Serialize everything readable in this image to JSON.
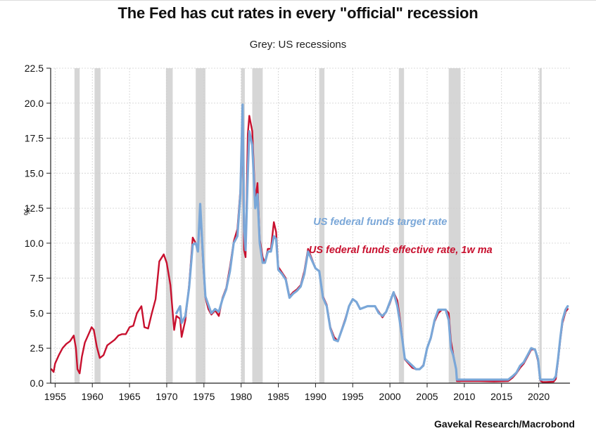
{
  "title": "The Fed has cut rates in every \"official\" recession",
  "subtitle": "Grey: US recessions",
  "source": "Gavekal Research/Macrobond",
  "colors": {
    "target": "#7aa7d8",
    "effective": "#c8102e",
    "recession": "#d6d6d6",
    "grid": "#cfcfcf"
  },
  "chart_data": {
    "type": "line",
    "ylabel": "%",
    "xlim": [
      1954.4,
      2024.2
    ],
    "ylim": [
      0,
      22.5
    ],
    "x_ticks": [
      1955,
      1960,
      1965,
      1970,
      1975,
      1980,
      1985,
      1990,
      1995,
      2000,
      2005,
      2010,
      2015,
      2020
    ],
    "y_ticks": [
      {
        "value": 0,
        "label": "0.0"
      },
      {
        "value": 2.5,
        "label": "2.5"
      },
      {
        "value": 5,
        "label": "5.0"
      },
      {
        "value": 7.5,
        "label": "7.5"
      },
      {
        "value": 10,
        "label": "10.0"
      },
      {
        "value": 12.5,
        "label": "12.5"
      },
      {
        "value": 15,
        "label": "15.0"
      },
      {
        "value": 17.5,
        "label": "17.5"
      },
      {
        "value": 20,
        "label": "20.0"
      },
      {
        "value": 22.5,
        "label": "22.5"
      }
    ],
    "recessions": [
      [
        1957.6,
        1958.3
      ],
      [
        1960.3,
        1961.1
      ],
      [
        1969.9,
        1970.8
      ],
      [
        1973.9,
        1975.2
      ],
      [
        1980.0,
        1980.5
      ],
      [
        1981.5,
        1982.9
      ],
      [
        1990.5,
        1991.2
      ],
      [
        2001.2,
        2001.9
      ],
      [
        2007.9,
        2009.5
      ],
      [
        2020.1,
        2020.4
      ]
    ],
    "series": [
      {
        "name": "US federal funds effective rate, 1w ma",
        "x": [
          1954.5,
          1954.8,
          1955.0,
          1955.5,
          1956.0,
          1956.5,
          1957.0,
          1957.5,
          1957.8,
          1958.0,
          1958.3,
          1958.6,
          1959.0,
          1959.5,
          1959.9,
          1960.2,
          1960.6,
          1961.0,
          1961.5,
          1962.0,
          1962.5,
          1963.0,
          1963.5,
          1964.0,
          1964.5,
          1965.0,
          1965.5,
          1966.0,
          1966.6,
          1967.0,
          1967.5,
          1968.0,
          1968.5,
          1969.0,
          1969.6,
          1970.0,
          1970.5,
          1971.0,
          1971.3,
          1971.8,
          1972.0,
          1972.5,
          1973.0,
          1973.5,
          1973.9,
          1974.2,
          1974.5,
          1974.9,
          1975.2,
          1975.6,
          1976.0,
          1976.5,
          1977.0,
          1977.5,
          1978.0,
          1978.5,
          1979.0,
          1979.5,
          1979.9,
          1980.2,
          1980.4,
          1980.6,
          1980.9,
          1981.1,
          1981.5,
          1981.9,
          1982.2,
          1982.5,
          1982.9,
          1983.2,
          1983.6,
          1984.0,
          1984.4,
          1984.7,
          1985.0,
          1985.5,
          1986.0,
          1986.5,
          1987.0,
          1987.5,
          1988.0,
          1988.5,
          1989.0,
          1989.5,
          1990.0,
          1990.5,
          1991.0,
          1991.5,
          1992.0,
          1992.5,
          1993.0,
          1994.0,
          1994.5,
          1995.0,
          1995.5,
          1996.0,
          1997.0,
          1998.0,
          1998.5,
          1999.0,
          1999.5,
          2000.0,
          2000.5,
          2001.0,
          2001.3,
          2001.7,
          2002.0,
          2003.0,
          2003.5,
          2004.0,
          2004.5,
          2005.0,
          2005.5,
          2006.0,
          2006.5,
          2007.0,
          2007.5,
          2007.9,
          2008.2,
          2008.5,
          2008.9,
          2009.0,
          2010.0,
          2012.0,
          2014.0,
          2015.9,
          2016.5,
          2017.0,
          2017.5,
          2018.0,
          2018.5,
          2019.0,
          2019.5,
          2019.9,
          2020.2,
          2020.5,
          2021.0,
          2022.0,
          2022.3,
          2022.6,
          2022.9,
          2023.2,
          2023.6,
          2023.9
        ],
        "y": [
          1.0,
          0.8,
          1.4,
          2.0,
          2.5,
          2.8,
          3.0,
          3.4,
          2.5,
          1.0,
          0.7,
          1.9,
          2.9,
          3.5,
          4.0,
          3.8,
          2.6,
          1.8,
          2.0,
          2.7,
          2.9,
          3.1,
          3.4,
          3.5,
          3.5,
          4.0,
          4.1,
          5.0,
          5.5,
          4.0,
          3.9,
          5.0,
          6.0,
          8.7,
          9.2,
          8.6,
          7.0,
          3.8,
          4.8,
          4.6,
          3.3,
          4.5,
          7.0,
          10.4,
          10.0,
          9.6,
          12.5,
          8.5,
          6.1,
          5.3,
          4.9,
          5.2,
          4.8,
          6.1,
          6.8,
          8.3,
          10.1,
          11.0,
          13.8,
          17.6,
          9.5,
          9.0,
          17.8,
          19.1,
          18.0,
          13.0,
          14.3,
          10.3,
          9.0,
          8.6,
          9.6,
          9.6,
          11.5,
          10.8,
          8.3,
          7.9,
          7.5,
          6.2,
          6.5,
          6.7,
          7.0,
          8.0,
          9.6,
          8.9,
          8.2,
          8.0,
          6.2,
          5.6,
          4.0,
          3.3,
          3.0,
          4.6,
          5.5,
          6.0,
          5.8,
          5.3,
          5.5,
          5.5,
          5.1,
          4.7,
          5.1,
          5.7,
          6.5,
          5.9,
          4.8,
          3.1,
          1.7,
          1.1,
          1.0,
          1.0,
          1.3,
          2.5,
          3.2,
          4.4,
          5.0,
          5.25,
          5.25,
          5.0,
          3.0,
          2.1,
          1.0,
          0.15,
          0.15,
          0.15,
          0.12,
          0.15,
          0.4,
          0.7,
          1.1,
          1.4,
          1.9,
          2.4,
          2.4,
          1.6,
          0.2,
          0.08,
          0.08,
          0.1,
          0.3,
          1.6,
          3.1,
          4.3,
          5.1,
          5.3
        ]
      },
      {
        "name": "US federal funds target rate",
        "x": [
          1971.3,
          1971.8,
          1972.0,
          1972.5,
          1973.0,
          1973.5,
          1973.9,
          1974.2,
          1974.5,
          1974.9,
          1975.2,
          1975.6,
          1976.0,
          1976.5,
          1977.0,
          1977.5,
          1978.0,
          1978.5,
          1979.0,
          1979.5,
          1979.9,
          1980.2,
          1980.4,
          1980.6,
          1980.9,
          1981.1,
          1981.5,
          1981.9,
          1982.2,
          1982.5,
          1982.9,
          1983.2,
          1983.6,
          1984.0,
          1984.4,
          1984.7,
          1985.0,
          1985.5,
          1986.0,
          1986.5,
          1987.0,
          1987.5,
          1988.0,
          1988.5,
          1989.0,
          1989.5,
          1990.0,
          1990.5,
          1991.0,
          1991.5,
          1992.0,
          1992.5,
          1993.0,
          1994.0,
          1994.5,
          1995.0,
          1995.5,
          1996.0,
          1997.0,
          1998.0,
          1998.5,
          1999.0,
          1999.5,
          2000.0,
          2000.5,
          2001.0,
          2001.3,
          2001.7,
          2002.0,
          2003.0,
          2003.5,
          2004.0,
          2004.5,
          2005.0,
          2005.5,
          2006.0,
          2006.5,
          2007.0,
          2007.5,
          2007.9,
          2008.2,
          2008.5,
          2008.9,
          2009.0,
          2010.0,
          2012.0,
          2014.0,
          2015.9,
          2016.5,
          2017.0,
          2017.5,
          2018.0,
          2018.5,
          2019.0,
          2019.5,
          2019.9,
          2020.2,
          2020.5,
          2021.0,
          2022.0,
          2022.3,
          2022.6,
          2022.9,
          2023.2,
          2023.6,
          2023.9
        ],
        "y": [
          5.0,
          5.5,
          4.3,
          4.8,
          6.8,
          9.9,
          10.0,
          9.4,
          12.8,
          8.8,
          6.2,
          5.6,
          5.0,
          5.3,
          5.1,
          6.0,
          6.7,
          8.0,
          10.0,
          10.5,
          13.5,
          19.9,
          11.0,
          9.5,
          15.0,
          18.0,
          17.0,
          12.5,
          13.5,
          10.0,
          8.6,
          8.6,
          9.4,
          9.4,
          10.5,
          10.3,
          8.1,
          7.8,
          7.4,
          6.1,
          6.4,
          6.6,
          6.9,
          7.8,
          9.4,
          8.8,
          8.2,
          8.0,
          6.1,
          5.5,
          3.9,
          3.1,
          3.0,
          4.5,
          5.5,
          6.0,
          5.8,
          5.3,
          5.5,
          5.5,
          5.0,
          4.8,
          5.1,
          5.8,
          6.5,
          5.5,
          4.5,
          3.0,
          1.75,
          1.25,
          1.0,
          1.0,
          1.25,
          2.5,
          3.25,
          4.5,
          5.25,
          5.25,
          5.25,
          4.5,
          2.5,
          2.0,
          1.0,
          0.25,
          0.25,
          0.25,
          0.25,
          0.25,
          0.5,
          0.75,
          1.25,
          1.5,
          2.0,
          2.5,
          2.4,
          1.75,
          0.25,
          0.25,
          0.25,
          0.25,
          0.5,
          1.75,
          3.25,
          4.5,
          5.25,
          5.5
        ]
      }
    ],
    "annotations": [
      {
        "text": "US federal funds target rate",
        "series": "US federal funds target rate",
        "anchor": [
          1989.7,
          11.3
        ]
      },
      {
        "text": "US federal funds effective rate, 1w ma",
        "series": "US federal funds effective rate, 1w ma",
        "anchor": [
          1989.1,
          9.3
        ]
      }
    ]
  }
}
